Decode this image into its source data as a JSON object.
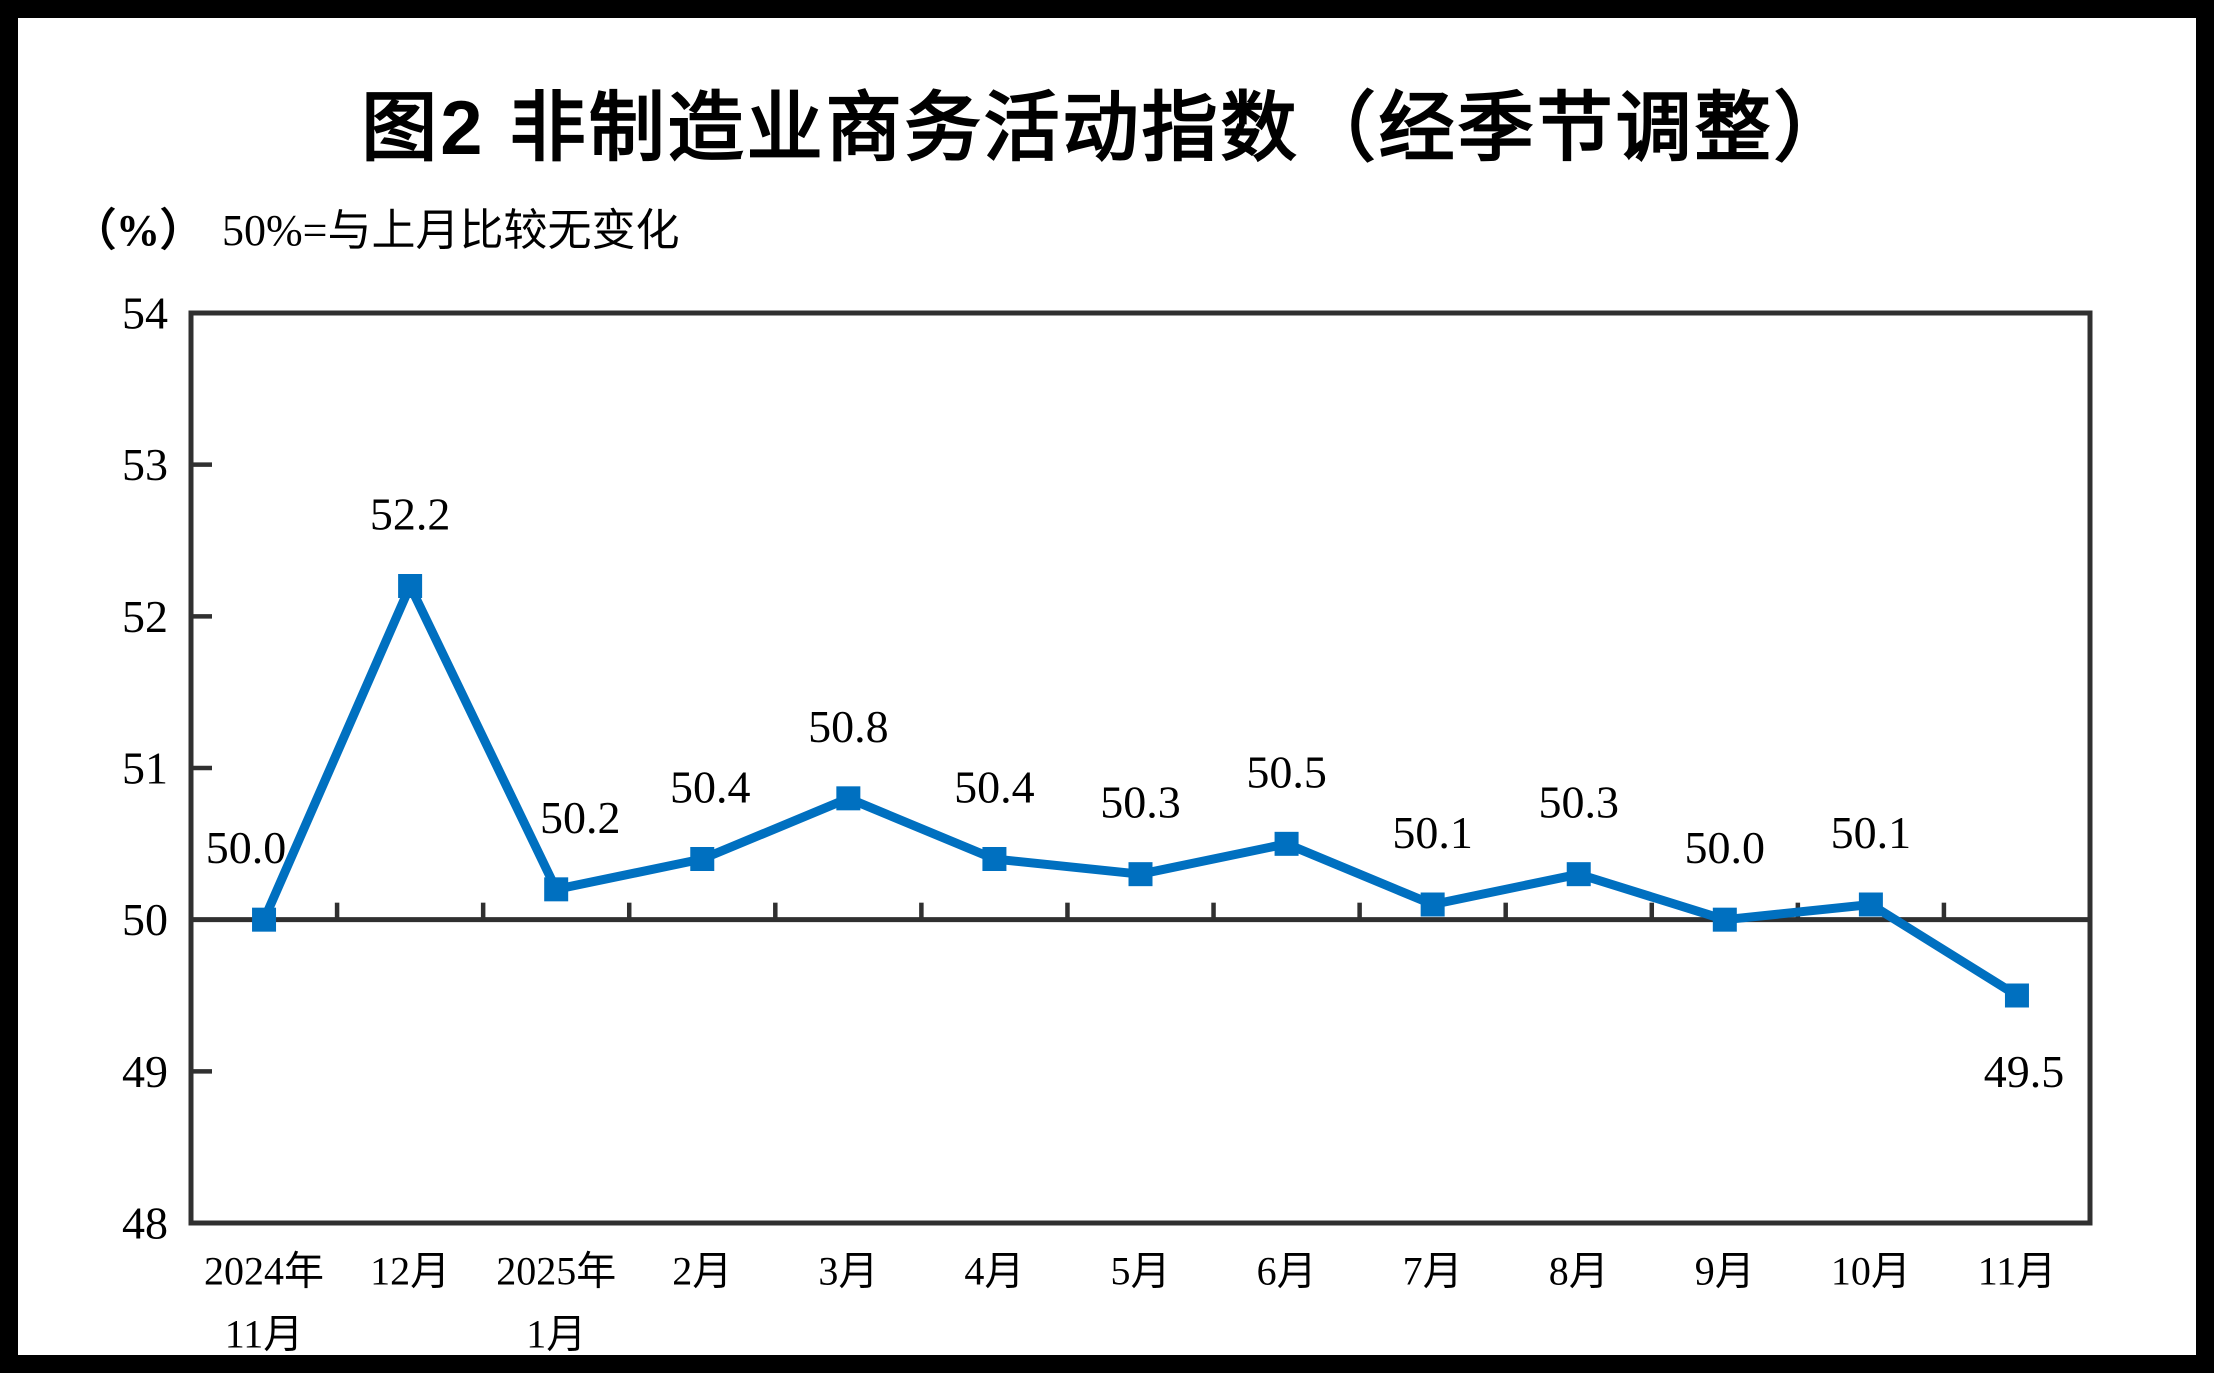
{
  "title": "图2 非制造业商务活动指数（经季节调整）",
  "subtitle": {
    "unit": "（%）",
    "note": "50%=与上月比较无变化"
  },
  "colors": {
    "series": "#0070C0",
    "axis": "#303030",
    "text": "#000000",
    "frame": "#000000",
    "background": "#FFFFFF"
  },
  "chart_data": {
    "type": "line",
    "title": "图2 非制造业商务活动指数（经季节调整）",
    "ylabel": "（%）",
    "reference_note": "50%=与上月比较无变化",
    "categories": [
      [
        "2024年",
        "11月"
      ],
      [
        "12月"
      ],
      [
        "2025年",
        "1月"
      ],
      [
        "2月"
      ],
      [
        "3月"
      ],
      [
        "4月"
      ],
      [
        "5月"
      ],
      [
        "6月"
      ],
      [
        "7月"
      ],
      [
        "8月"
      ],
      [
        "9月"
      ],
      [
        "10月"
      ],
      [
        "11月"
      ]
    ],
    "values": [
      50.0,
      52.2,
      50.2,
      50.4,
      50.8,
      50.4,
      50.3,
      50.5,
      50.1,
      50.3,
      50.0,
      50.1,
      49.5
    ],
    "data_labels": [
      "50.0",
      "52.2",
      "50.2",
      "50.4",
      "50.8",
      "50.4",
      "50.3",
      "50.5",
      "50.1",
      "50.3",
      "50.0",
      "50.1",
      "49.5"
    ],
    "ylim": [
      48,
      54
    ],
    "yticks": [
      48,
      49,
      50,
      51,
      52,
      53,
      54
    ],
    "reference_value": 50,
    "grid": false,
    "legend": false,
    "marker": "square"
  }
}
